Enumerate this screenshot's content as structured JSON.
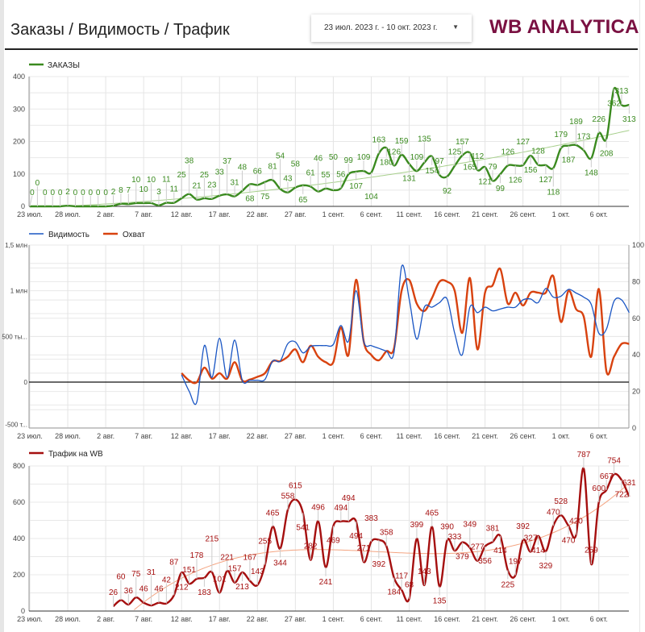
{
  "header": {
    "title": "Заказы / Видимость / Трафик",
    "date_range": "23 июл. 2023 г. - 10 окт. 2023 г.",
    "logo": "WB ANALYTICA"
  },
  "x_ticks": [
    "23 июл.",
    "28 июл.",
    "2 авг.",
    "7 авг.",
    "12 авг.",
    "17 авг.",
    "22 авг.",
    "27 авг.",
    "1 сент.",
    "6 сент.",
    "11 сент.",
    "16 сент.",
    "21 сент.",
    "26 сент.",
    "1 окт.",
    "6 окт."
  ],
  "chart_data": [
    {
      "type": "line",
      "title": "",
      "legend": [
        "ЗАКАЗЫ"
      ],
      "legend_position": "top-left",
      "color": "#3a8a1f",
      "trend_color": "#a8d08d",
      "ylim": [
        0,
        400
      ],
      "y_ticks": [
        "0",
        "100",
        "200",
        "300",
        "400"
      ],
      "start_day": 0,
      "series": [
        {
          "name": "ЗАКАЗЫ",
          "values": [
            0,
            0,
            0,
            0,
            0,
            2,
            0,
            0,
            0,
            0,
            0,
            2,
            8,
            7,
            10,
            10,
            10,
            3,
            11,
            11,
            25,
            38,
            21,
            25,
            23,
            33,
            37,
            31,
            48,
            68,
            66,
            75,
            81,
            54,
            43,
            58,
            65,
            61,
            46,
            55,
            50,
            56,
            99,
            107,
            109,
            104,
            163,
            180,
            126,
            159,
            131,
            109,
            135,
            154,
            97,
            92,
            125,
            157,
            165,
            112,
            121,
            79,
            99,
            126,
            126,
            127,
            156,
            128,
            127,
            118,
            179,
            187,
            189,
            173,
            148,
            226,
            208,
            362,
            313,
            313
          ]
        }
      ]
    },
    {
      "type": "line",
      "legend": [
        "Видимость",
        "Охват"
      ],
      "legend_position": "top-left",
      "ylim_left": [
        -500000,
        1500000
      ],
      "ylim_right": [
        0,
        100
      ],
      "y_ticks_left": [
        "-500 т...",
        "0",
        "500 ты...",
        "1 млн",
        "1,5 млн"
      ],
      "y_ticks_right": [
        "0",
        "20",
        "40",
        "60",
        "80",
        "100"
      ],
      "start_day": 20,
      "series": [
        {
          "name": "Видимость",
          "axis": "left",
          "color": "#1a56c4",
          "values_thousands": [
            80,
            -100,
            -220,
            400,
            50,
            480,
            50,
            460,
            20,
            20,
            20,
            30,
            230,
            230,
            420,
            440,
            320,
            390,
            400,
            400,
            412,
            620,
            447,
            1000,
            447,
            400,
            370,
            340,
            325,
            1263,
            910,
            470,
            820,
            820,
            870,
            910,
            535,
            300,
            820,
            760,
            820,
            780,
            800,
            820,
            820,
            900,
            910,
            870,
            1025,
            930,
            940,
            1015,
            975,
            930,
            850,
            535,
            580,
            885,
            900,
            760
          ]
        },
        {
          "name": "Охват",
          "axis": "right",
          "color": "#d8420f",
          "values": [
            30,
            26,
            25,
            33,
            27,
            30,
            27,
            36,
            26,
            26.5,
            28,
            30,
            36.5,
            36.5,
            39,
            43,
            36,
            45,
            39,
            36,
            36,
            55,
            40,
            81,
            47.5,
            40,
            37,
            42,
            43.5,
            75,
            81,
            68,
            64,
            71,
            80,
            80,
            75,
            52,
            82,
            43,
            74,
            78,
            87,
            68,
            74,
            67,
            74,
            74,
            74,
            83,
            58,
            75,
            65,
            61,
            39,
            76,
            31,
            39,
            46,
            46
          ]
        }
      ]
    },
    {
      "type": "line",
      "legend": [
        "Трафик на WB"
      ],
      "legend_position": "top-left",
      "color": "#a50f0f",
      "trend_color": "#f4a582",
      "ylim": [
        0,
        800
      ],
      "y_ticks": [
        "0",
        "200",
        "400",
        "600",
        "800"
      ],
      "start_day": 11,
      "series": [
        {
          "name": "Трафик на WB",
          "values": [
            26,
            60,
            36,
            75,
            46,
            31,
            46,
            42,
            87,
            212,
            151,
            178,
            183,
            215,
            101,
            221,
            157,
            213,
            167,
            143,
            255,
            465,
            344,
            558,
            615,
            541,
            282,
            496,
            241,
            469,
            494,
            494,
            494,
            271,
            383,
            392,
            358,
            184,
            117,
            68,
            399,
            143,
            465,
            135,
            390,
            333,
            379,
            349,
            277,
            356,
            381,
            414,
            225,
            197,
            392,
            327,
            414,
            329,
            470,
            528,
            470,
            420,
            787,
            259,
            600,
            667,
            754,
            722,
            631
          ]
        }
      ]
    }
  ]
}
